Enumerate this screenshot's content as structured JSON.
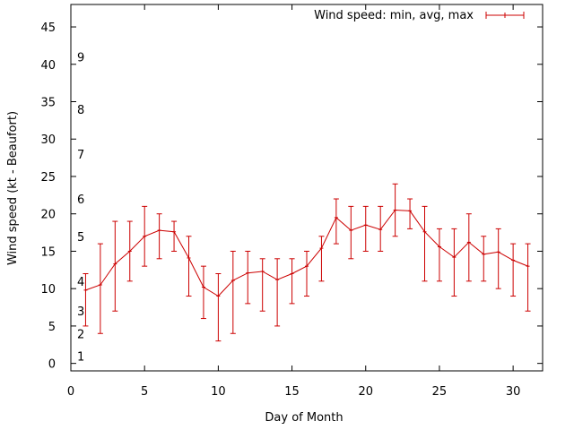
{
  "chart_data": {
    "type": "line",
    "title": "",
    "xlabel": "Day of Month",
    "ylabel": "Wind speed (kt - Beaufort)",
    "xlim": [
      0,
      32
    ],
    "ylim": [
      -1,
      48
    ],
    "x_ticks": [
      0,
      5,
      10,
      15,
      20,
      25,
      30
    ],
    "y_ticks": [
      0,
      5,
      10,
      15,
      20,
      25,
      30,
      35,
      40,
      45
    ],
    "beaufort_labels": [
      {
        "value": 1,
        "y": 1
      },
      {
        "value": 2,
        "y": 4
      },
      {
        "value": 3,
        "y": 7
      },
      {
        "value": 4,
        "y": 11
      },
      {
        "value": 5,
        "y": 17
      },
      {
        "value": 6,
        "y": 22
      },
      {
        "value": 7,
        "y": 28
      },
      {
        "value": 8,
        "y": 34
      },
      {
        "value": 9,
        "y": 41
      }
    ],
    "legend_position": "top-right",
    "grid": false,
    "series": [
      {
        "name": "Wind speed: min, avg, max",
        "color": "#cc0000",
        "points": [
          {
            "x": 1,
            "min": 5,
            "avg": 9.8,
            "max": 12
          },
          {
            "x": 2,
            "min": 4,
            "avg": 10.5,
            "max": 16
          },
          {
            "x": 3,
            "min": 7,
            "avg": 13.3,
            "max": 19
          },
          {
            "x": 4,
            "min": 11,
            "avg": 15,
            "max": 19
          },
          {
            "x": 5,
            "min": 13,
            "avg": 17,
            "max": 21
          },
          {
            "x": 6,
            "min": 14,
            "avg": 17.8,
            "max": 20
          },
          {
            "x": 7,
            "min": 15,
            "avg": 17.6,
            "max": 19
          },
          {
            "x": 8,
            "min": 9,
            "avg": 14.1,
            "max": 17
          },
          {
            "x": 9,
            "min": 6,
            "avg": 10.2,
            "max": 13
          },
          {
            "x": 10,
            "min": 3,
            "avg": 9,
            "max": 12
          },
          {
            "x": 11,
            "min": 4,
            "avg": 11.1,
            "max": 15
          },
          {
            "x": 12,
            "min": 8,
            "avg": 12.1,
            "max": 15
          },
          {
            "x": 13,
            "min": 7,
            "avg": 12.3,
            "max": 14
          },
          {
            "x": 14,
            "min": 5,
            "avg": 11.2,
            "max": 14
          },
          {
            "x": 15,
            "min": 8,
            "avg": 12,
            "max": 14
          },
          {
            "x": 16,
            "min": 9,
            "avg": 13,
            "max": 15
          },
          {
            "x": 17,
            "min": 11,
            "avg": 15.4,
            "max": 17
          },
          {
            "x": 18,
            "min": 16,
            "avg": 19.5,
            "max": 22
          },
          {
            "x": 19,
            "min": 14,
            "avg": 17.8,
            "max": 21
          },
          {
            "x": 20,
            "min": 15,
            "avg": 18.5,
            "max": 21
          },
          {
            "x": 21,
            "min": 15,
            "avg": 17.9,
            "max": 21
          },
          {
            "x": 22,
            "min": 17,
            "avg": 20.5,
            "max": 24
          },
          {
            "x": 23,
            "min": 18,
            "avg": 20.4,
            "max": 22
          },
          {
            "x": 24,
            "min": 11,
            "avg": 17.6,
            "max": 21
          },
          {
            "x": 25,
            "min": 11,
            "avg": 15.6,
            "max": 18
          },
          {
            "x": 26,
            "min": 9,
            "avg": 14.2,
            "max": 18
          },
          {
            "x": 27,
            "min": 11,
            "avg": 16.2,
            "max": 20
          },
          {
            "x": 28,
            "min": 11,
            "avg": 14.6,
            "max": 17
          },
          {
            "x": 29,
            "min": 10,
            "avg": 14.9,
            "max": 18
          },
          {
            "x": 30,
            "min": 9,
            "avg": 13.8,
            "max": 16
          },
          {
            "x": 31,
            "min": 7,
            "avg": 13,
            "max": 16
          }
        ]
      }
    ]
  }
}
